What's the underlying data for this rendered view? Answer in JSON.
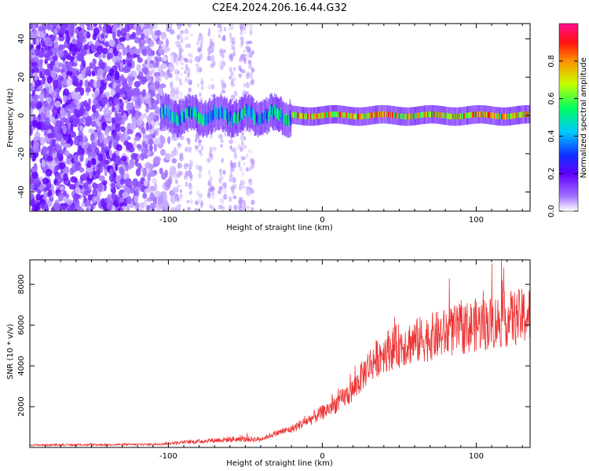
{
  "figure": {
    "title": "C2E4.2024.206.16.44.G32"
  },
  "chart_data": [
    {
      "type": "heatmap",
      "title": "C2E4.2024.206.16.44.G32",
      "xlabel": "Height of straight line (km)",
      "ylabel": "Frequency (Hz)",
      "xlim": [
        -190,
        135
      ],
      "ylim": [
        -50,
        48
      ],
      "x_ticks": [
        -100,
        0,
        100
      ],
      "x_tick_labels": [
        "-100",
        "0",
        "100"
      ],
      "y_ticks": [
        -40,
        -20,
        0,
        20,
        40
      ],
      "y_tick_labels": [
        "-40",
        "-20",
        "0",
        "20",
        "40"
      ],
      "colorbar": {
        "label": "Normalized spectral amplitude",
        "range": [
          0,
          1
        ],
        "ticks": [
          0.0,
          0.2,
          0.4,
          0.6,
          0.8
        ],
        "tick_labels": [
          "0.0",
          "0.2",
          "0.4",
          "0.6",
          "0.8"
        ],
        "colormap": [
          "#ffffff",
          "#a070ff",
          "#6000ff",
          "#1030ff",
          "#00c8ff",
          "#00ff60",
          "#c8ff00",
          "#ff9000",
          "#ff1010",
          "#ff1090"
        ]
      },
      "description_of_signal": {
        "noise_region_x": [
          -190,
          -95
        ],
        "sparse_region_x": [
          -95,
          -40
        ],
        "signal_start_x": -105,
        "signal_center_frequency": 0,
        "signal_band_halfwidth_hz": 3
      },
      "grid": false
    },
    {
      "type": "line",
      "xlabel": "Height of straight line (km)",
      "ylabel": "SNR (10 * v/v)",
      "xlim": [
        -190,
        135
      ],
      "ylim": [
        0,
        9200
      ],
      "x_ticks": [
        -100,
        0,
        100
      ],
      "x_tick_labels": [
        "-100",
        "0",
        "100"
      ],
      "y_ticks": [
        2000,
        4000,
        6000,
        8000
      ],
      "y_tick_labels": [
        "2000",
        "4000",
        "6000",
        "8000"
      ],
      "color": "#ee3333",
      "trend": {
        "x": [
          -190,
          -150,
          -110,
          -80,
          -60,
          -40,
          -30,
          -20,
          -10,
          0,
          10,
          20,
          25,
          30,
          40,
          50,
          60,
          70,
          80,
          90,
          100,
          110,
          120,
          130,
          135
        ],
        "y": [
          120,
          130,
          150,
          300,
          400,
          400,
          700,
          900,
          1300,
          1700,
          2200,
          2800,
          3400,
          4000,
          4700,
          5000,
          5200,
          5400,
          5600,
          5800,
          6000,
          6100,
          6300,
          6400,
          6500
        ]
      },
      "grid": false
    }
  ]
}
